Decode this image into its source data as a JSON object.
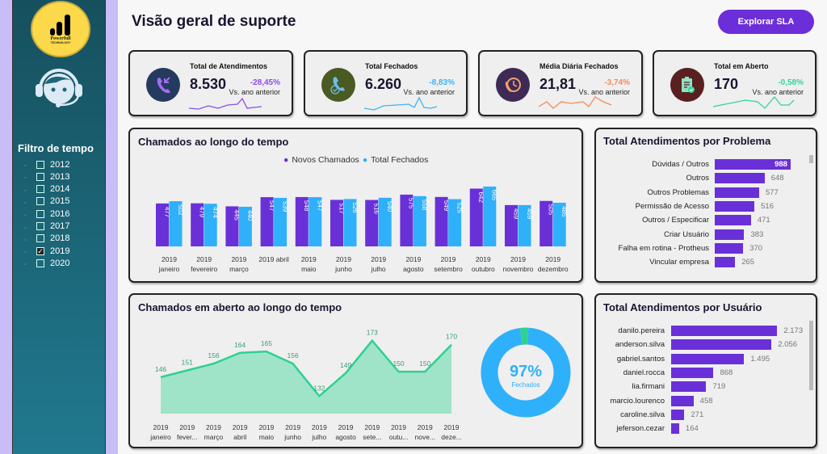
{
  "logo": {
    "text": "Powerfull",
    "subtext": "TECHNOLOGY"
  },
  "sidebar": {
    "filter_title": "Filtro de tempo",
    "years": [
      {
        "label": "2012",
        "checked": false
      },
      {
        "label": "2013",
        "checked": false
      },
      {
        "label": "2014",
        "checked": false
      },
      {
        "label": "2015",
        "checked": false
      },
      {
        "label": "2016",
        "checked": false
      },
      {
        "label": "2017",
        "checked": false
      },
      {
        "label": "2018",
        "checked": false
      },
      {
        "label": "2019",
        "checked": true
      },
      {
        "label": "2020",
        "checked": false
      }
    ]
  },
  "header": {
    "title": "Visão geral de suporte",
    "button": "Explorar SLA"
  },
  "kpis": [
    {
      "title": "Total de Atendimentos",
      "value": "8.530",
      "delta": "-28,45%",
      "sub": "Vs. ano anterior",
      "icon": "phone-incoming-icon",
      "icon_bg": "#243a5e",
      "color": "#8a4ee6"
    },
    {
      "title": "Total Fechados",
      "value": "6.260",
      "delta": "-8,83%",
      "sub": "Vs. ano anterior",
      "icon": "phone-check-icon",
      "icon_bg": "#4a5a23",
      "color": "#3fb3f5"
    },
    {
      "title": "Média Diária Fechados",
      "value": "21,81",
      "delta": "-3,74%",
      "sub": "Vs. ano anterior",
      "icon": "phone-clock-icon",
      "icon_bg": "#3d2a55",
      "color": "#f58a5a"
    },
    {
      "title": "Total em Aberto",
      "value": "170",
      "delta": "-0,58%",
      "sub": "Vs. ano anterior",
      "icon": "clipboard-check-icon",
      "icon_bg": "#5a1f1f",
      "color": "#35d49a"
    }
  ],
  "chart_data": [
    {
      "type": "bar",
      "title": "Chamados ao longo do tempo",
      "categories": [
        [
          "2019",
          "janeiro"
        ],
        [
          "2019",
          "fevereiro"
        ],
        [
          "2019",
          "março"
        ],
        [
          "2019 abril",
          ""
        ],
        [
          "2019",
          "maio"
        ],
        [
          "2019",
          "junho"
        ],
        [
          "2019",
          "julho"
        ],
        [
          "2019",
          "agosto"
        ],
        [
          "2019",
          "setembro"
        ],
        [
          "2019",
          "outubro"
        ],
        [
          "2019",
          "novembro"
        ],
        [
          "2019",
          "dezembro"
        ]
      ],
      "series": [
        {
          "name": "Novos Chamados",
          "color": "#6a30d8",
          "values": [
            477,
            479,
            445,
            547,
            548,
            517,
            516,
            575,
            549,
            642,
            459,
            505
          ]
        },
        {
          "name": "Total Fechados",
          "color": "#2fb0fb",
          "values": [
            502,
            474,
            440,
            539,
            547,
            526,
            540,
            558,
            525,
            665,
            459,
            485
          ]
        }
      ],
      "legend": "top-center",
      "ylim": [
        0,
        700
      ]
    },
    {
      "type": "area",
      "title": "Chamados em aberto ao longo do tempo",
      "categories": [
        [
          "2019",
          "janeiro"
        ],
        [
          "2019",
          "fever..."
        ],
        [
          "2019",
          "março"
        ],
        [
          "2019",
          "abril"
        ],
        [
          "2019",
          "maio"
        ],
        [
          "2019",
          "junho"
        ],
        [
          "2019",
          "julho"
        ],
        [
          "2019",
          "agosto"
        ],
        [
          "2019",
          "sete..."
        ],
        [
          "2019",
          "outu..."
        ],
        [
          "2019",
          "nove..."
        ],
        [
          "2019",
          "deze..."
        ]
      ],
      "values": [
        146,
        151,
        156,
        164,
        165,
        156,
        132,
        149,
        173,
        150,
        150,
        170
      ],
      "color": "#2fd190",
      "ylim": [
        119,
        180
      ]
    },
    {
      "type": "pie",
      "donut": true,
      "center_value": "97%",
      "center_label": "Fechados",
      "slices": [
        {
          "label": "Fechados",
          "value": 97,
          "color": "#2fb0fb"
        },
        {
          "label": "Em aberto",
          "value": 3,
          "color": "#2fd190"
        }
      ]
    },
    {
      "type": "bar",
      "orientation": "horizontal",
      "title": "Total Atendimentos por Problema",
      "categories": [
        "Dúvidas / Outros",
        "Outros",
        "Outros Problemas",
        "Permissão de Acesso",
        "Outros / Especificar",
        "Criar Usuário",
        "Falha em rotina - Protheus",
        "Vincular empresa"
      ],
      "values": [
        988,
        648,
        577,
        516,
        471,
        383,
        370,
        265
      ],
      "labels": [
        "988",
        "648",
        "577",
        "516",
        "471",
        "383",
        "370",
        "265"
      ],
      "color": "#6a30d8",
      "xlim": [
        0,
        1050
      ]
    },
    {
      "type": "bar",
      "orientation": "horizontal",
      "title": "Total Atendimentos por Usuário",
      "categories": [
        "danilo.pereira",
        "anderson.silva",
        "gabriel.santos",
        "daniel.rocca",
        "lia.firmani",
        "marcio.lourenco",
        "caroline.silva",
        "jeferson.cezar"
      ],
      "values": [
        2173,
        2056,
        1495,
        868,
        719,
        458,
        271,
        164
      ],
      "labels": [
        "2.173",
        "2.056",
        "1.495",
        "868",
        "719",
        "458",
        "271",
        "164"
      ],
      "color": "#6a30d8",
      "xlim": [
        0,
        2250
      ]
    }
  ]
}
